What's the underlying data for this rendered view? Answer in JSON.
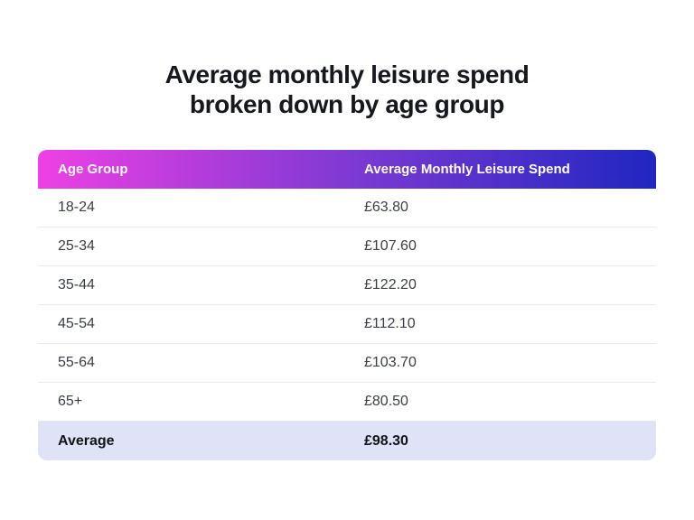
{
  "title": {
    "line1": "Average monthly leisure spend",
    "line2": "broken down by age group"
  },
  "table": {
    "columns": [
      "Age Group",
      "Average Monthly Leisure Spend"
    ],
    "rows": [
      {
        "age_group": "18-24",
        "spend": "£63.80"
      },
      {
        "age_group": "25-34",
        "spend": "£107.60"
      },
      {
        "age_group": "35-44",
        "spend": "£122.20"
      },
      {
        "age_group": "45-54",
        "spend": "£112.10"
      },
      {
        "age_group": "55-64",
        "spend": "£103.70"
      },
      {
        "age_group": "65+",
        "spend": "£80.50"
      }
    ],
    "average_row": {
      "label": "Average",
      "spend": "£98.30"
    }
  },
  "colors": {
    "header_gradient_start": "#ee40e4",
    "header_gradient_mid": "#7b39d3",
    "header_gradient_end": "#2026c0",
    "header_text": "#ffffff",
    "average_row_bg": "#e0e2f8",
    "row_divider": "#e7eaf4",
    "title_text": "#16181e",
    "row_text": "#3b3e45",
    "page_bg": "#ffffff"
  },
  "chart_data": {
    "type": "table",
    "title": "Average monthly leisure spend broken down by age group",
    "columns": [
      "Age Group",
      "Average Monthly Leisure Spend"
    ],
    "categories": [
      "18-24",
      "25-34",
      "35-44",
      "45-54",
      "55-64",
      "65+"
    ],
    "values": [
      63.8,
      107.6,
      122.2,
      112.1,
      103.7,
      80.5
    ],
    "average": 98.3,
    "currency": "GBP",
    "legend_position": "none",
    "grid": false
  }
}
